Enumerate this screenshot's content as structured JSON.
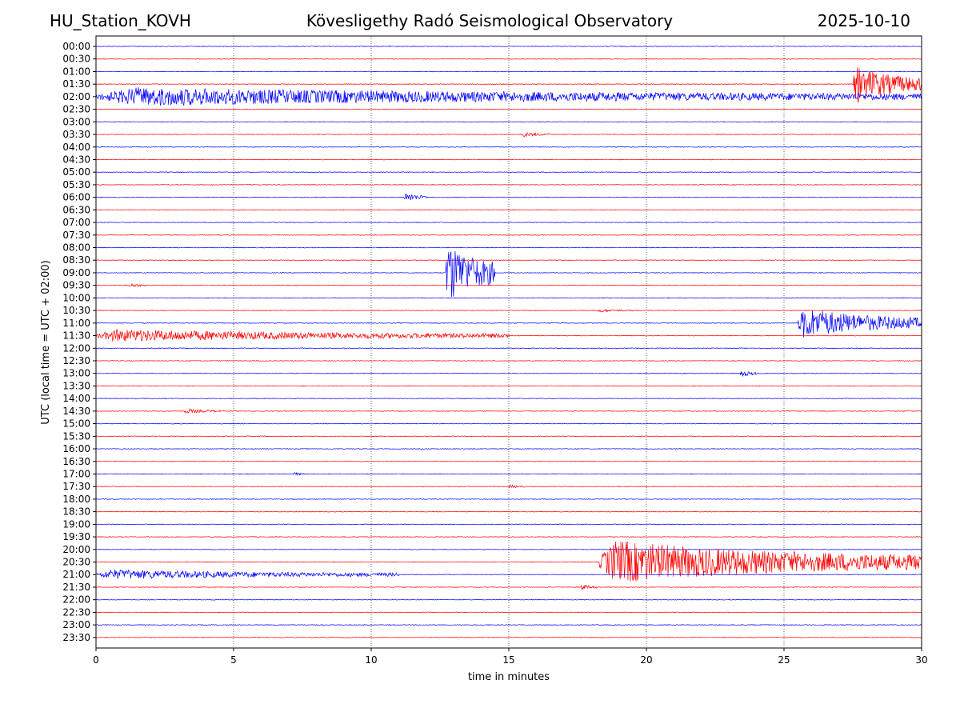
{
  "header": {
    "station": "HU_Station_KOVH",
    "observatory": "Kövesligethy Radó Seismological Observatory",
    "date": "2025-10-10"
  },
  "chart_data": {
    "type": "line",
    "subtype": "helicorder",
    "xlabel": "time in minutes",
    "ylabel": "UTC (local time = UTC + 02:00)",
    "xlim": [
      0,
      30
    ],
    "x_ticks": [
      "0",
      "5",
      "10",
      "15",
      "20",
      "25",
      "30"
    ],
    "x_tick_values": [
      0,
      5,
      10,
      15,
      20,
      25,
      30
    ],
    "grid": "vertical dotted at x ticks",
    "colors": [
      "#0000ff",
      "#ff0000"
    ],
    "rows": [
      "00:00",
      "00:30",
      "01:00",
      "01:30",
      "02:00",
      "02:30",
      "03:00",
      "03:30",
      "04:00",
      "04:30",
      "05:00",
      "05:30",
      "06:00",
      "06:30",
      "07:00",
      "07:30",
      "08:00",
      "08:30",
      "09:00",
      "09:30",
      "10:00",
      "10:30",
      "11:00",
      "11:30",
      "12:00",
      "12:30",
      "13:00",
      "13:30",
      "14:00",
      "14:30",
      "15:00",
      "15:30",
      "16:00",
      "16:30",
      "17:00",
      "17:30",
      "18:00",
      "18:30",
      "19:00",
      "19:30",
      "20:00",
      "20:30",
      "21:00",
      "21:30",
      "22:00",
      "22:30",
      "23:00",
      "23:30"
    ],
    "events": [
      {
        "row": "01:30",
        "start": 27.5,
        "end": 30,
        "peak": 3.0
      },
      {
        "row": "02:00",
        "start": 0,
        "end": 30,
        "peak": 1.5
      },
      {
        "row": "03:30",
        "start": 15.5,
        "end": 16.5,
        "peak": 0.4
      },
      {
        "row": "06:00",
        "start": 11.2,
        "end": 12.0,
        "peak": 0.8
      },
      {
        "row": "09:00",
        "start": 12.7,
        "end": 14.5,
        "peak": 5.0
      },
      {
        "row": "09:30",
        "start": 1.2,
        "end": 1.8,
        "peak": 0.4
      },
      {
        "row": "10:30",
        "start": 18.2,
        "end": 19.5,
        "peak": 0.3
      },
      {
        "row": "11:00",
        "start": 25.5,
        "end": 30,
        "peak": 2.5
      },
      {
        "row": "11:30",
        "start": 0,
        "end": 15,
        "peak": 1.0
      },
      {
        "row": "13:00",
        "start": 23.4,
        "end": 24.0,
        "peak": 0.6
      },
      {
        "row": "14:30",
        "start": 3.2,
        "end": 4.5,
        "peak": 0.4
      },
      {
        "row": "17:00",
        "start": 7.2,
        "end": 7.6,
        "peak": 0.3
      },
      {
        "row": "17:30",
        "start": 15.0,
        "end": 15.6,
        "peak": 0.3
      },
      {
        "row": "20:30",
        "start": 18.3,
        "end": 30,
        "peak": 3.5
      },
      {
        "row": "21:00",
        "start": 0,
        "end": 11,
        "peak": 0.8
      },
      {
        "row": "21:30",
        "start": 17.6,
        "end": 18.2,
        "peak": 0.5
      }
    ]
  }
}
